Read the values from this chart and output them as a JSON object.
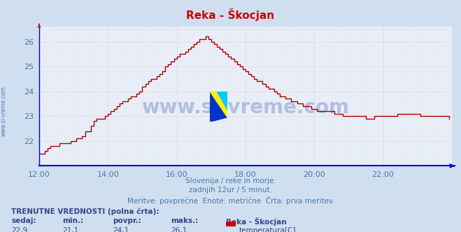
{
  "title": "Reka - Škocjan",
  "title_color": "#cc0000",
  "background_color": "#d0dff0",
  "plot_bg_color": "#e8eef8",
  "grid_color": "#ffaaaa",
  "grid_color_minor": "#ddcccc",
  "line_color": "#aa0000",
  "x_label_color": "#4477aa",
  "y_label_color": "#4477aa",
  "axis_color": "#0000cc",
  "xlim": [
    0,
    144
  ],
  "ylim": [
    21.0,
    26.6
  ],
  "yticks": [
    22,
    23,
    24,
    25,
    26
  ],
  "xtick_labels": [
    "12:00",
    "14:00",
    "16:00",
    "18:00",
    "20:00",
    "22:00"
  ],
  "xtick_positions": [
    0,
    24,
    48,
    72,
    96,
    120
  ],
  "subtitle1": "Slovenija / reke in morje.",
  "subtitle2": "zadnjih 12ur / 5 minut.",
  "subtitle3": "Meritve: povprečne  Enote: metrične  Črta: prva meritev",
  "subtitle_color": "#4477aa",
  "watermark": "www.si-vreme.com",
  "watermark_color": "#3355aa",
  "side_label": "www.si-vreme.com",
  "footer_label1": "TRENUTNE VREDNOSTI (polna črta):",
  "footer_col1": "sedaj:",
  "footer_col2": "min.:",
  "footer_col3": "povpr.:",
  "footer_col4": "maks.:",
  "footer_col5": "Reka - Škocjan",
  "footer_val1": "22,9",
  "footer_val2": "21,1",
  "footer_val3": "24,1",
  "footer_val4": "26,1",
  "footer_legend": "temperatura[C]",
  "legend_color": "#cc0000",
  "temperature_data": [
    21.5,
    21.5,
    21.6,
    21.7,
    21.8,
    21.8,
    21.8,
    21.9,
    21.9,
    21.9,
    21.9,
    22.0,
    22.0,
    22.1,
    22.1,
    22.2,
    22.4,
    22.4,
    22.6,
    22.8,
    22.9,
    22.9,
    22.9,
    23.0,
    23.1,
    23.2,
    23.3,
    23.4,
    23.5,
    23.6,
    23.6,
    23.7,
    23.8,
    23.8,
    23.9,
    24.0,
    24.2,
    24.3,
    24.4,
    24.5,
    24.5,
    24.6,
    24.7,
    24.8,
    25.0,
    25.1,
    25.2,
    25.3,
    25.4,
    25.5,
    25.5,
    25.6,
    25.7,
    25.8,
    25.9,
    26.0,
    26.1,
    26.1,
    26.2,
    26.1,
    26.0,
    25.9,
    25.8,
    25.7,
    25.6,
    25.5,
    25.4,
    25.3,
    25.2,
    25.1,
    25.0,
    24.9,
    24.8,
    24.7,
    24.6,
    24.5,
    24.4,
    24.4,
    24.3,
    24.2,
    24.1,
    24.1,
    24.0,
    23.9,
    23.8,
    23.8,
    23.7,
    23.7,
    23.6,
    23.6,
    23.5,
    23.5,
    23.4,
    23.4,
    23.4,
    23.3,
    23.3,
    23.2,
    23.2,
    23.2,
    23.2,
    23.2,
    23.2,
    23.1,
    23.1,
    23.1,
    23.0,
    23.0,
    23.0,
    23.0,
    23.0,
    23.0,
    23.0,
    23.0,
    22.9,
    22.9,
    22.9,
    23.0,
    23.0,
    23.0,
    23.0,
    23.0,
    23.0,
    23.0,
    23.0,
    23.1,
    23.1,
    23.1,
    23.1,
    23.1,
    23.1,
    23.1,
    23.1,
    23.0,
    23.0,
    23.0,
    23.0,
    23.0,
    23.0,
    23.0,
    23.0,
    23.0,
    23.0,
    22.9
  ]
}
